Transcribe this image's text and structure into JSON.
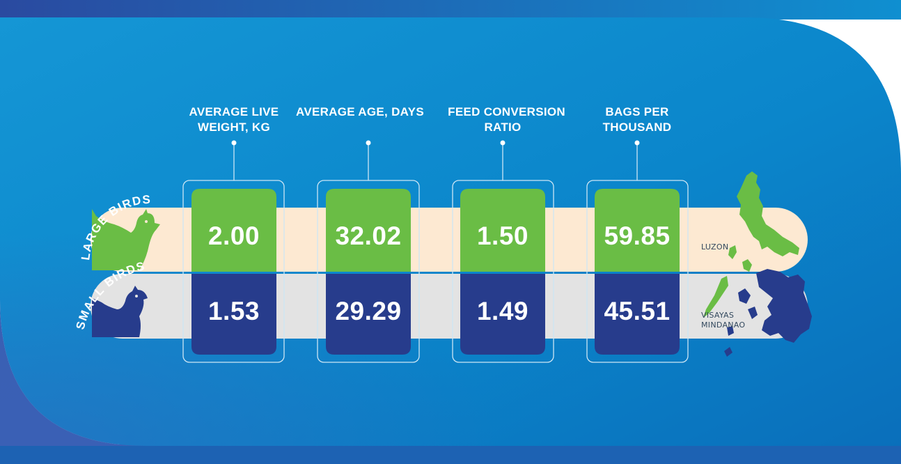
{
  "columns": [
    {
      "header_line1": "AVERAGE LIVE",
      "header_line2": "WEIGHT, KG"
    },
    {
      "header_line1": "AVERAGE AGE, DAYS",
      "header_line2": ""
    },
    {
      "header_line1": "FEED CONVERSION",
      "header_line2": "RATIO"
    },
    {
      "header_line1": "BAGS PER",
      "header_line2": "THOUSAND"
    }
  ],
  "rows": [
    {
      "label": "LARGE BIRDS",
      "values": [
        "2.00",
        "32.02",
        "1.50",
        "59.85"
      ]
    },
    {
      "label": "SMALL BIRDS",
      "values": [
        "1.53",
        "29.29",
        "1.49",
        "45.51"
      ]
    }
  ],
  "regions": {
    "luzon": "LUZON",
    "visayas": "VISAYAS",
    "mindanao": "MINDANAO"
  },
  "colors": {
    "background": "#0c8fd1",
    "green": "#6abd45",
    "navy": "#273c8c",
    "cream_band": "#fde9d2",
    "gray_band": "#e3e3e3"
  },
  "icons": {
    "large_bird": "chicken-silhouette-icon",
    "small_bird": "chicken-silhouette-icon",
    "map": "philippines-map-icon"
  }
}
